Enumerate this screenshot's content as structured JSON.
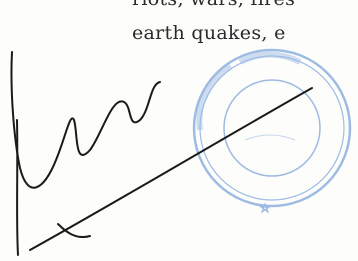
{
  "document": {
    "lines": [
      "riots, wars, fires",
      "earth quakes, e"
    ]
  }
}
